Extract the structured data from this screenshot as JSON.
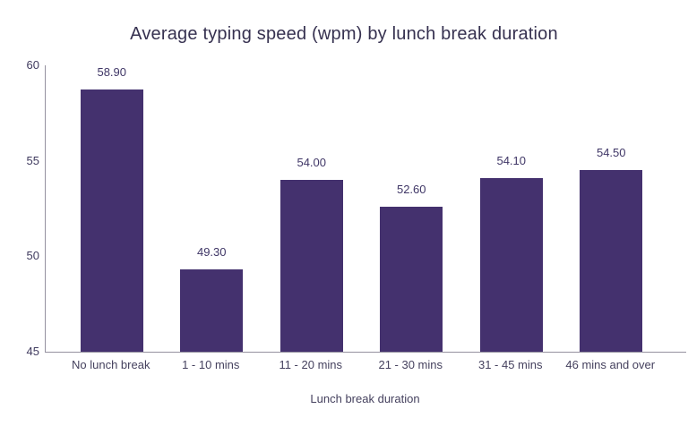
{
  "chart_data": {
    "type": "bar",
    "title": "Average typing speed (wpm) by lunch break duration",
    "categories": [
      "No lunch break",
      "1 - 10 mins",
      "11 - 20 mins",
      "21 - 30 mins",
      "31 - 45 mins",
      "46 mins and over"
    ],
    "values": [
      58.9,
      49.3,
      54.0,
      52.6,
      54.1,
      54.5
    ],
    "value_labels": [
      "58.90",
      "49.30",
      "54.00",
      "52.60",
      "54.10",
      "54.50"
    ],
    "xlabel": "Lunch break duration",
    "ylabel": "",
    "ylim": [
      45,
      60
    ],
    "yticks": [
      60,
      55,
      50,
      45
    ],
    "grid": false,
    "legend": false,
    "bar_color": "#44316E",
    "colors": {
      "title_text": "#363150",
      "tick_text": "#3F3A5E",
      "value_text": "#3F3666",
      "category_text": "#45415E",
      "axis_line": "#95919F"
    }
  }
}
